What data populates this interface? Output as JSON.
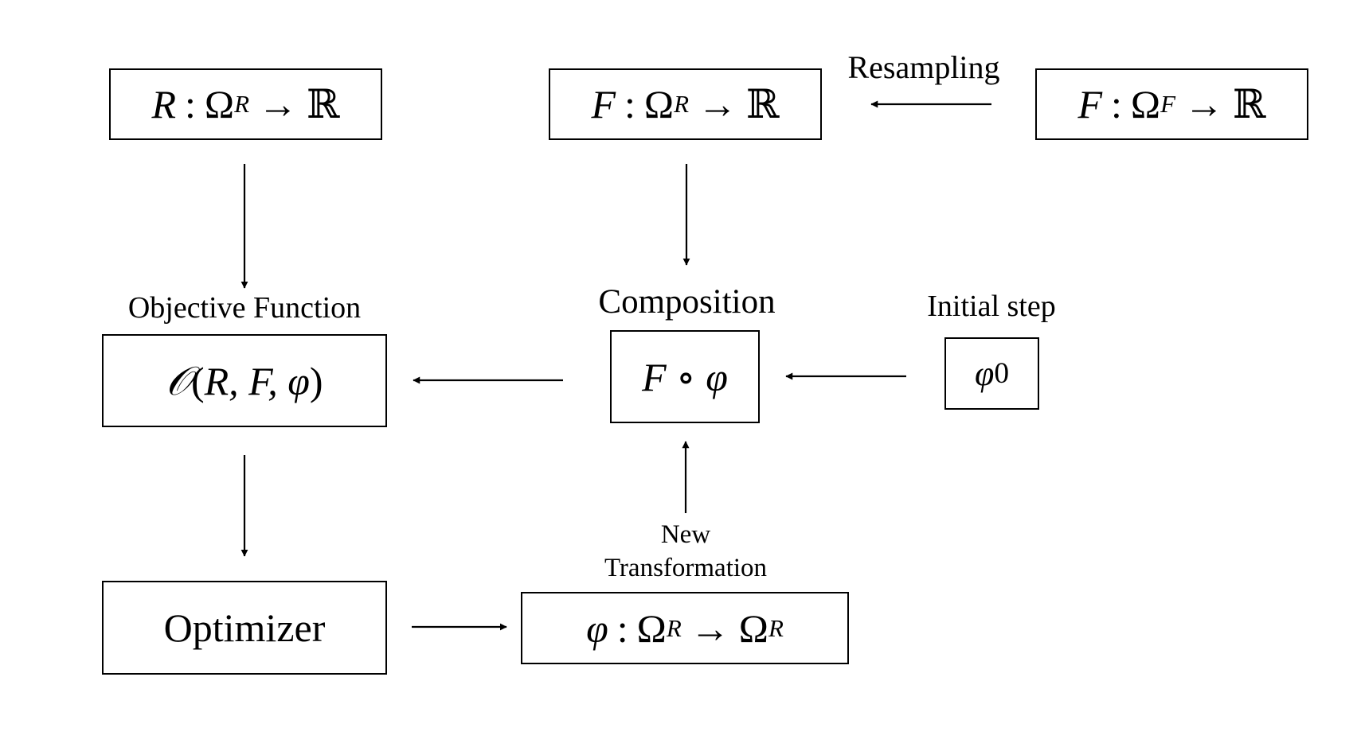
{
  "diagram": {
    "reference_image": {
      "name": "R",
      "domain": "Ω",
      "domain_sub": "R",
      "arrow": "→",
      "codomain": "ℝ"
    },
    "moving_resampled": {
      "name": "F",
      "domain": "Ω",
      "domain_sub": "R",
      "arrow": "→",
      "codomain": "ℝ"
    },
    "moving_image": {
      "name": "F",
      "domain": "Ω",
      "domain_sub": "F",
      "arrow": "→",
      "codomain": "ℝ"
    },
    "resampling_label": "Resampling",
    "objective_label": "Objective Function",
    "objective": {
      "symbol": "𝒪",
      "open": "(",
      "args": "R, F, φ",
      "close": ")"
    },
    "composition_label": "Composition",
    "composition": {
      "left": "F",
      "op": "∘",
      "right": "φ"
    },
    "initial_step_label": "Initial step",
    "initial_step": {
      "symbol": "φ",
      "index": "0"
    },
    "optimizer_label": "Optimizer",
    "new_transformation_label": [
      "New",
      "Transformation"
    ],
    "transformation": {
      "name": "φ",
      "domain": "Ω",
      "domain_sub": "R",
      "arrow": "→",
      "codomain": "Ω",
      "codomain_sub": "R"
    }
  }
}
